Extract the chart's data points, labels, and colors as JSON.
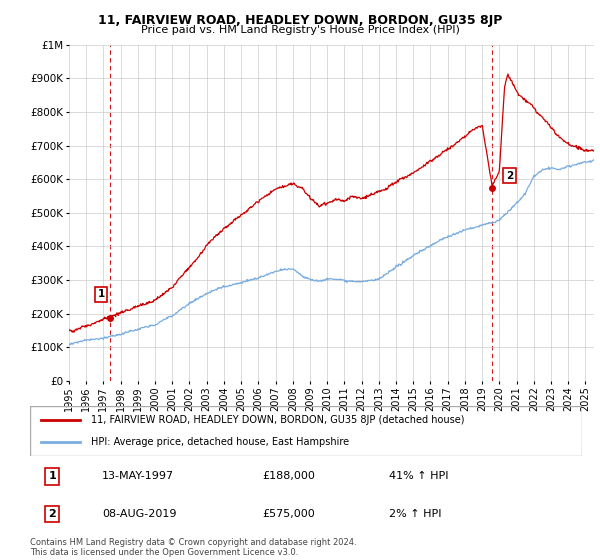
{
  "title": "11, FAIRVIEW ROAD, HEADLEY DOWN, BORDON, GU35 8JP",
  "subtitle": "Price paid vs. HM Land Registry's House Price Index (HPI)",
  "legend_label_red": "11, FAIRVIEW ROAD, HEADLEY DOWN, BORDON, GU35 8JP (detached house)",
  "legend_label_blue": "HPI: Average price, detached house, East Hampshire",
  "point1_date": "13-MAY-1997",
  "point1_price": "£188,000",
  "point1_hpi": "41% ↑ HPI",
  "point2_date": "08-AUG-2019",
  "point2_price": "£575,000",
  "point2_hpi": "2% ↑ HPI",
  "footer": "Contains HM Land Registry data © Crown copyright and database right 2024.\nThis data is licensed under the Open Government Licence v3.0.",
  "ylim": [
    0,
    1000000
  ],
  "yticks": [
    0,
    100000,
    200000,
    300000,
    400000,
    500000,
    600000,
    700000,
    800000,
    900000,
    1000000
  ],
  "ytick_labels": [
    "£0",
    "£100K",
    "£200K",
    "£300K",
    "£400K",
    "£500K",
    "£600K",
    "£700K",
    "£800K",
    "£900K",
    "£1M"
  ],
  "red_color": "#cc0000",
  "blue_color": "#7aade0",
  "vline_color": "#cc0000",
  "bg_color": "#ffffff",
  "grid_color": "#cccccc",
  "point1_x": 1997.37,
  "point1_y": 188000,
  "point2_x": 2019.58,
  "point2_y": 575000,
  "xmin": 1995,
  "xmax": 2025.5,
  "xticks": [
    1995,
    1996,
    1997,
    1998,
    1999,
    2000,
    2001,
    2002,
    2003,
    2004,
    2005,
    2006,
    2007,
    2008,
    2009,
    2010,
    2011,
    2012,
    2013,
    2014,
    2015,
    2016,
    2017,
    2018,
    2019,
    2020,
    2021,
    2022,
    2023,
    2024,
    2025
  ]
}
